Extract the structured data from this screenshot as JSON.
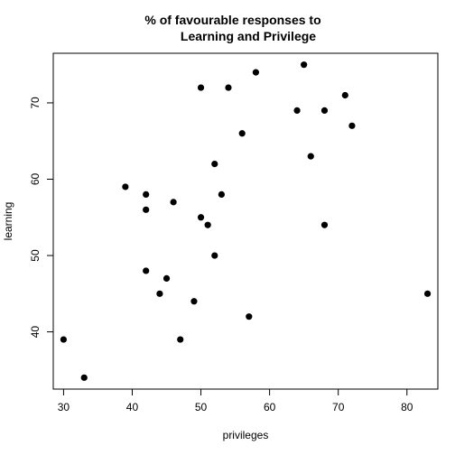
{
  "chart_data": {
    "type": "scatter",
    "title_line1": "% of favourable responses to",
    "title_line2": "Learning and Privilege",
    "xlabel": "privileges",
    "ylabel": "learning",
    "xlim": [
      28.5,
      84.5
    ],
    "ylim": [
      32.5,
      76.5
    ],
    "x_ticks": [
      30,
      40,
      50,
      60,
      70,
      80
    ],
    "y_ticks": [
      40,
      50,
      60,
      70
    ],
    "grid": false,
    "point_color": "#000000",
    "points": [
      {
        "x": 30,
        "y": 39
      },
      {
        "x": 33,
        "y": 34
      },
      {
        "x": 39,
        "y": 59
      },
      {
        "x": 42,
        "y": 58
      },
      {
        "x": 42,
        "y": 56
      },
      {
        "x": 42,
        "y": 48
      },
      {
        "x": 44,
        "y": 45
      },
      {
        "x": 45,
        "y": 47
      },
      {
        "x": 46,
        "y": 57
      },
      {
        "x": 47,
        "y": 39
      },
      {
        "x": 49,
        "y": 44
      },
      {
        "x": 50,
        "y": 72
      },
      {
        "x": 50,
        "y": 55
      },
      {
        "x": 51,
        "y": 54
      },
      {
        "x": 52,
        "y": 62
      },
      {
        "x": 52,
        "y": 50
      },
      {
        "x": 53,
        "y": 58
      },
      {
        "x": 54,
        "y": 72
      },
      {
        "x": 56,
        "y": 66
      },
      {
        "x": 57,
        "y": 42
      },
      {
        "x": 58,
        "y": 74
      },
      {
        "x": 64,
        "y": 69
      },
      {
        "x": 65,
        "y": 75
      },
      {
        "x": 66,
        "y": 63
      },
      {
        "x": 68,
        "y": 69
      },
      {
        "x": 68,
        "y": 54
      },
      {
        "x": 71,
        "y": 71
      },
      {
        "x": 72,
        "y": 67
      },
      {
        "x": 83,
        "y": 45
      }
    ]
  }
}
